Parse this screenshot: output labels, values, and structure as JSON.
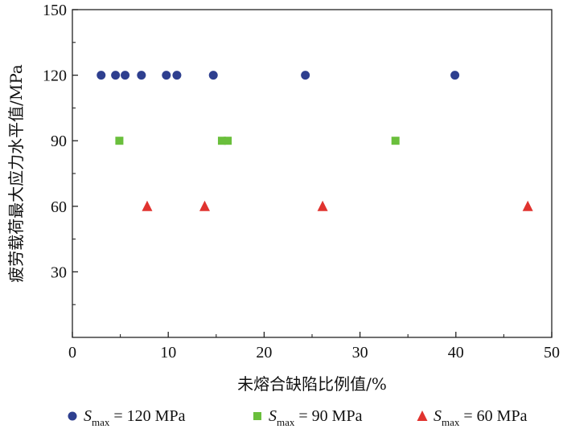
{
  "chart_data": {
    "type": "scatter",
    "xlabel": "未熔合缺陷比例值/%",
    "ylabel": "疲劳载荷最大应力水平值/MPa",
    "xlim": [
      0,
      50
    ],
    "ylim": [
      0,
      150
    ],
    "xticks": [
      0,
      10,
      20,
      30,
      40,
      50
    ],
    "yticks": [
      30,
      60,
      90,
      120,
      150
    ],
    "grid": false,
    "legend_position": "bottom",
    "series": [
      {
        "name": "S_max = 120 MPa",
        "legend": {
          "s": "S",
          "sub": "max",
          "rest": " = 120 MPa"
        },
        "marker": "circle",
        "color": "#2e3f8f",
        "points": [
          [
            3.0,
            120
          ],
          [
            4.5,
            120
          ],
          [
            5.5,
            120
          ],
          [
            7.2,
            120
          ],
          [
            9.8,
            120
          ],
          [
            10.9,
            120
          ],
          [
            14.7,
            120
          ],
          [
            24.3,
            120
          ],
          [
            39.9,
            120
          ]
        ]
      },
      {
        "name": "S_max = 90 MPa",
        "legend": {
          "s": "S",
          "sub": "max",
          "rest": " = 90 MPa"
        },
        "marker": "square",
        "color": "#6abf3c",
        "points": [
          [
            4.9,
            90
          ],
          [
            15.6,
            90
          ],
          [
            16.2,
            90
          ],
          [
            33.7,
            90
          ]
        ]
      },
      {
        "name": "S_max = 60 MPa",
        "legend": {
          "s": "S",
          "sub": "max",
          "rest": " = 60 MPa"
        },
        "marker": "triangle",
        "color": "#e0332f",
        "points": [
          [
            7.8,
            60
          ],
          [
            13.8,
            60
          ],
          [
            26.1,
            60
          ],
          [
            47.5,
            60
          ]
        ]
      }
    ]
  }
}
